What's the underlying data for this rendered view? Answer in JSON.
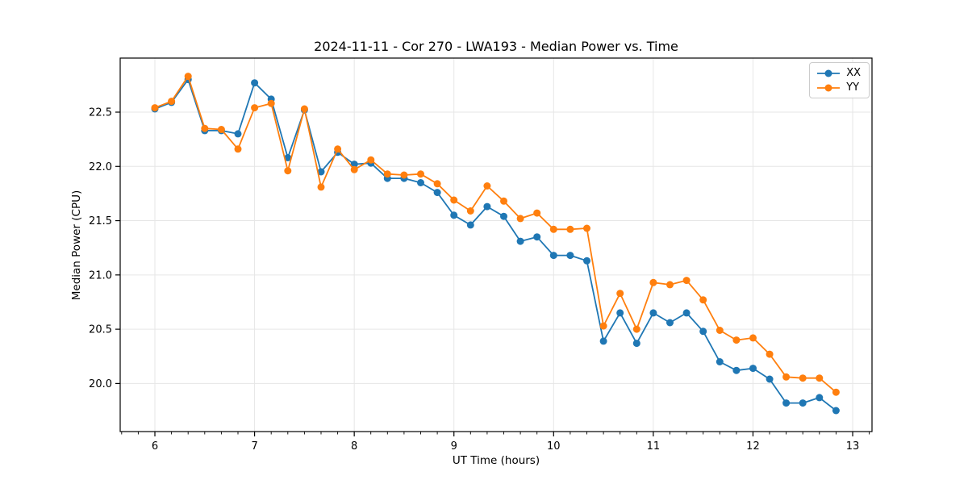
{
  "chart_data": {
    "type": "line",
    "title": "2024-11-11 - Cor 270 - LWA193 - Median Power vs. Time",
    "xlabel": "UT Time (hours)",
    "ylabel": "Median Power (CPU)",
    "xlim": [
      5.652,
      13.194
    ],
    "ylim": [
      19.557,
      22.998
    ],
    "x_ticks": [
      6,
      7,
      8,
      9,
      10,
      11,
      12,
      13
    ],
    "x_tick_labels": [
      "6",
      "7",
      "8",
      "9",
      "10",
      "11",
      "12",
      "13"
    ],
    "x_minor_tick_step_hours": 0.16667,
    "y_ticks": [
      20.0,
      20.5,
      21.0,
      21.5,
      22.0,
      22.5
    ],
    "y_tick_labels": [
      "20.0",
      "20.5",
      "21.0",
      "21.5",
      "22.0",
      "22.5"
    ],
    "grid": true,
    "grid_color": "#e6e6e6",
    "background": "#ffffff",
    "legend_position": "upper right",
    "x": [
      6.0,
      6.1667,
      6.3333,
      6.5,
      6.6667,
      6.8333,
      7.0,
      7.1667,
      7.3333,
      7.5,
      7.6667,
      7.8333,
      8.0,
      8.1667,
      8.3333,
      8.5,
      8.6667,
      8.8333,
      9.0,
      9.1667,
      9.3333,
      9.5,
      9.6667,
      9.8333,
      10.0,
      10.1667,
      10.3333,
      10.5,
      10.6667,
      10.8333,
      11.0,
      11.1667,
      11.3333,
      11.5,
      11.6667,
      11.8333,
      12.0,
      12.1667,
      12.3333,
      12.5,
      12.6667,
      12.8333
    ],
    "series": [
      {
        "name": "XX",
        "color": "#1f77b4",
        "values": [
          22.53,
          22.59,
          22.8,
          22.33,
          22.33,
          22.3,
          22.77,
          22.62,
          22.08,
          22.52,
          21.95,
          22.13,
          22.02,
          22.03,
          21.89,
          21.89,
          21.85,
          21.76,
          21.55,
          21.46,
          21.63,
          21.54,
          21.31,
          21.35,
          21.18,
          21.18,
          21.13,
          20.39,
          20.65,
          20.37,
          20.65,
          20.56,
          20.65,
          20.48,
          20.2,
          20.12,
          20.14,
          20.04,
          19.82,
          19.82,
          19.87,
          19.75
        ]
      },
      {
        "name": "YY",
        "color": "#ff7f0e",
        "values": [
          22.54,
          22.6,
          22.83,
          22.35,
          22.34,
          22.16,
          22.54,
          22.58,
          21.96,
          22.53,
          21.81,
          22.16,
          21.97,
          22.06,
          21.93,
          21.92,
          21.93,
          21.84,
          21.69,
          21.59,
          21.82,
          21.68,
          21.52,
          21.57,
          21.42,
          21.42,
          21.43,
          20.53,
          20.83,
          20.5,
          20.93,
          20.91,
          20.95,
          20.77,
          20.49,
          20.4,
          20.42,
          20.27,
          20.06,
          20.05,
          20.05,
          19.92
        ]
      }
    ]
  }
}
